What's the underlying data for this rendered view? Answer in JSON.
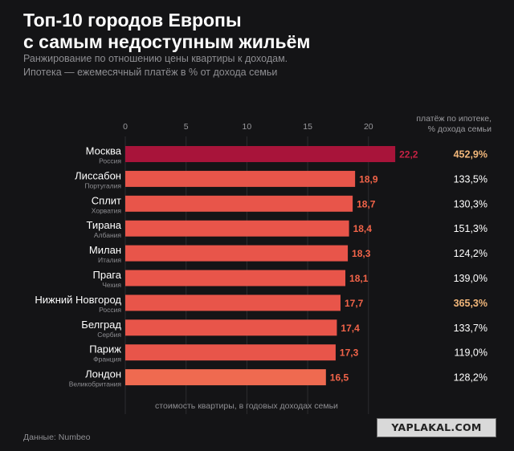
{
  "header": {
    "title_line1": "Топ-10 городов Европы",
    "title_line2": "с самым недоступным жильём",
    "subtitle_line1": "Ранжирование по отношению цены квартиры к доходам.",
    "subtitle_line2": "Ипотека — ежемесячный платёж в % от дохода семьи"
  },
  "right_column": {
    "header_line1": "платёж по ипотеке,",
    "header_line2": "% дохода семьи"
  },
  "chart_data": {
    "type": "bar",
    "orientation": "horizontal",
    "categories": [
      "Москва",
      "Лиссабон",
      "Сплит",
      "Тирана",
      "Милан",
      "Прага",
      "Нижний Новгород",
      "Белград",
      "Париж",
      "Лондон"
    ],
    "countries": [
      "Россия",
      "Португалия",
      "Хорватия",
      "Албания",
      "Италия",
      "Чехия",
      "Россия",
      "Сербия",
      "Франция",
      "Великобритания"
    ],
    "values": [
      22.2,
      18.9,
      18.7,
      18.4,
      18.3,
      18.1,
      17.7,
      17.4,
      17.3,
      16.5
    ],
    "value_labels": [
      "22,2",
      "18,9",
      "18,7",
      "18,4",
      "18,3",
      "18,1",
      "17,7",
      "17,4",
      "17,3",
      "16,5"
    ],
    "mortgage_labels": [
      "452,9%",
      "133,5%",
      "130,3%",
      "151,3%",
      "124,2%",
      "139,0%",
      "365,3%",
      "133,7%",
      "119,0%",
      "128,2%"
    ],
    "highlight_mortgage": [
      true,
      false,
      false,
      false,
      false,
      false,
      true,
      false,
      false,
      false
    ],
    "xlim": [
      0,
      22.5
    ],
    "xticks": [
      0,
      5,
      10,
      15,
      20
    ],
    "xlabel": "стоимость квартиры, в годовых доходах семьи",
    "grid": true,
    "colors": {
      "top_bar": "#a8143a",
      "top_label": "#c72245",
      "bar": "#e8554a",
      "bar_last": "#ef6a50",
      "label": "#f26449",
      "highlight_text": "#f2b77a",
      "normal_text": "#ffffff"
    }
  },
  "footer": {
    "credit": "Данные: Numbeo",
    "watermark": "YAPLAKAL.COM"
  }
}
